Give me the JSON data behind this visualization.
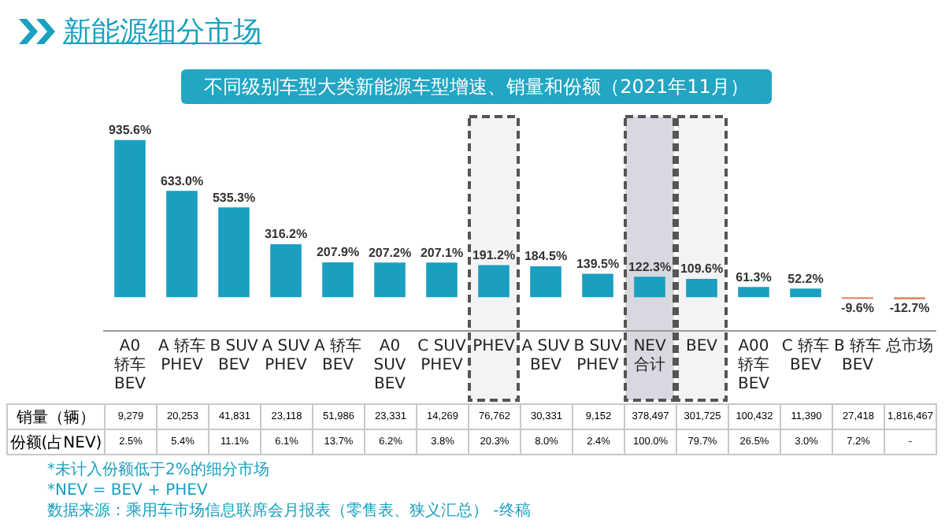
{
  "chart_data": [
    {
      "type": "bar",
      "title": "新能源细分市场",
      "subtitle": "不同级别车型大类新能源车型增速、销量和份额（2021年11月）",
      "categories": [
        "A0 轿车 BEV",
        "A 轿车 PHEV",
        "B SUV BEV",
        "A SUV PHEV",
        "A 轿车 BEV",
        "A0 SUV BEV",
        "C SUV PHEV",
        "PHEV",
        "A SUV BEV",
        "B SUV PHEV",
        "NEV合计",
        "BEV",
        "A00 轿车 BEV",
        "C 轿车 BEV",
        "B 轿车 BEV",
        "总市场"
      ],
      "colors": [
        "#1a9fc0",
        "#1a9fc0",
        "#1a9fc0",
        "#1a9fc0",
        "#1a9fc0",
        "#1a9fc0",
        "#1a9fc0",
        "#1a9fc0",
        "#1a9fc0",
        "#1a9fc0",
        "#1a9fc0",
        "#1a9fc0",
        "#1a9fc0",
        "#1a9fc0",
        "#e08a6a",
        "#e08a6a"
      ],
      "values": [
        935.6,
        633.0,
        535.3,
        316.2,
        207.9,
        207.2,
        207.1,
        191.2,
        184.5,
        139.5,
        122.3,
        109.6,
        61.3,
        52.2,
        -9.6,
        -12.7
      ],
      "value_labels": [
        "935.6%",
        "633.0%",
        "535.3%",
        "316.2%",
        "207.9%",
        "207.2%",
        "207.1%",
        "191.2%",
        "184.5%",
        "139.5%",
        "122.3%",
        "109.6%",
        "61.3%",
        "52.2%",
        "-9.6%",
        "-12.7%"
      ],
      "bands": [
        {
          "axis": "x",
          "from": "PHEV",
          "to": "PHEV",
          "color": "#f3f3f6"
        },
        {
          "axis": "x",
          "from": "NEV合计",
          "to": "NEV合计",
          "color": "#d8d8e0"
        },
        {
          "axis": "x",
          "from": "BEV",
          "to": "BEV",
          "color": "#f3f3f6"
        }
      ]
    },
    {
      "type": "heatmap",
      "categories": [
        null,
        null,
        null,
        null,
        null,
        null,
        null,
        null,
        null,
        null,
        null,
        null,
        null,
        null,
        null,
        null
      ],
      "y_categories": [
        "销量（辆）",
        "份额(占NEV)"
      ],
      "cells": [
        [
          9279,
          20253,
          41831,
          23118,
          51986,
          23331,
          14269,
          76762,
          30331,
          9152,
          378497,
          301725,
          100432,
          11390,
          27418,
          1816467
        ],
        [
          2.5,
          5.4,
          11.1,
          6.1,
          13.7,
          6.2,
          3.8,
          20.3,
          8.0,
          2.4,
          100.0,
          79.7,
          26.5,
          3.0,
          7.2,
          null
        ]
      ],
      "cell_labels": [
        [
          "9,279",
          "20,253",
          "41,831",
          "23,118",
          "51,986",
          "23,331",
          "14,269",
          "76,762",
          "30,331",
          "9,152",
          "378,497",
          "301,725",
          "100,432",
          "11,390",
          "27,418",
          "1,816,467"
        ],
        [
          "2.5%",
          "5.4%",
          "11.1%",
          "6.1%",
          "13.7%",
          "6.2%",
          "3.8%",
          "20.3%",
          "8.0%",
          "2.4%",
          "100.0%",
          "79.7%",
          "26.5%",
          "3.0%",
          "7.2%",
          "-"
        ]
      ],
      "annotations": [
        "*未计入份额低于2%的细分市场",
        "*NEV = BEV + PHEV",
        "数据来源：乘用车市场信息联席会月报表（零售表、狭义汇总） -终稿"
      ]
    }
  ]
}
